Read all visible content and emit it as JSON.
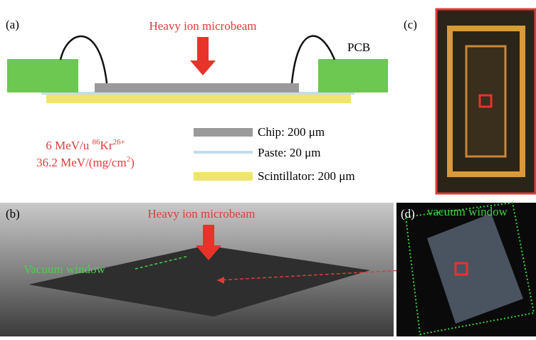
{
  "panel_a": {
    "label": "(a)",
    "beam_label": "Heavy ion microbeam",
    "pcb_label": "PCB",
    "ion": {
      "energy": "6 MeV/u ",
      "mass": "86",
      "element": "Kr",
      "charge": "26+"
    },
    "let": {
      "text": "36.2 MeV/(mg/cm",
      "exp": "2",
      "close": ")"
    },
    "legend": [
      "Chip: 200 μm",
      "Paste: 20 μm",
      "Scintillator: 200 μm"
    ]
  },
  "panel_b": {
    "label": "(b)",
    "beam_label": "Heavy ion microbeam",
    "window_label": "Vacuum window"
  },
  "panel_c": {
    "label": "(c)"
  },
  "panel_d": {
    "label": "(d)",
    "window_label": "vacuum window"
  }
}
